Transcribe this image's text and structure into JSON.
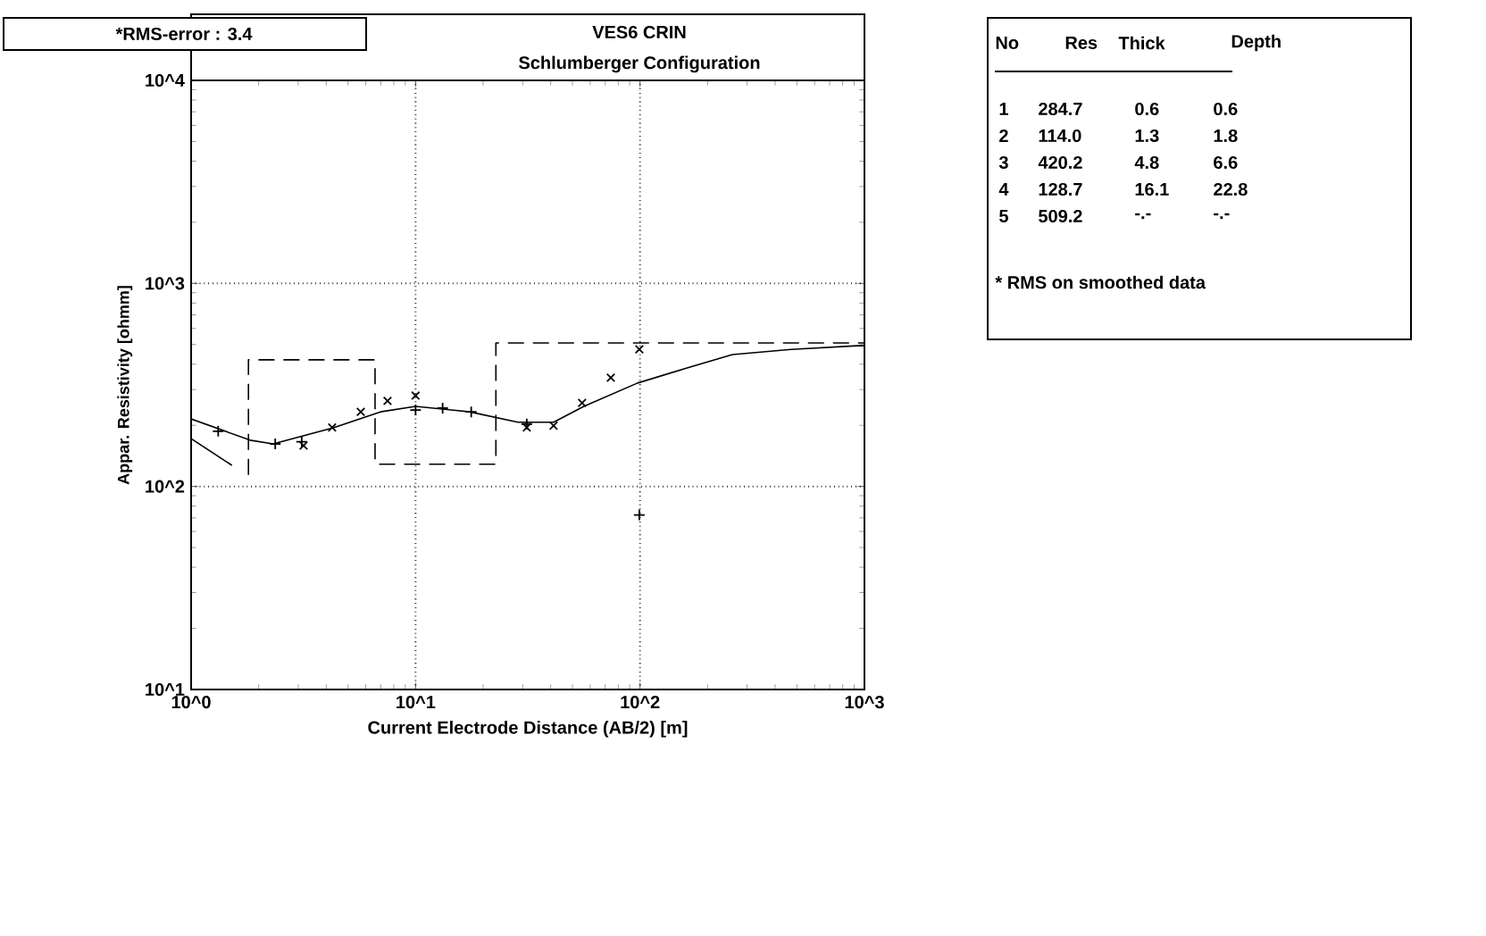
{
  "chart_data": {
    "type": "line",
    "title": "VES6 CRIN",
    "subtitle": "Schlumberger Configuration",
    "xlabel": "Current Electrode Distance (AB/2) [m]",
    "ylabel": "Appar. Resistivity [ohmm]",
    "log": "xy",
    "grid": true,
    "xlim": [
      1,
      1000
    ],
    "ylim": [
      10,
      10000
    ],
    "xticks": [
      {
        "value": 1,
        "label": "10^0"
      },
      {
        "value": 10,
        "label": "10^1"
      },
      {
        "value": 100,
        "label": "10^2"
      },
      {
        "value": 1000,
        "label": "10^3"
      }
    ],
    "yticks": [
      {
        "value": 10,
        "label": "10^1"
      },
      {
        "value": 100,
        "label": "10^2"
      },
      {
        "value": 1000,
        "label": "10^3"
      },
      {
        "value": 10000,
        "label": "10^4"
      }
    ],
    "series": [
      {
        "color": "#000000",
        "line_style": "solid",
        "marker": "none",
        "x": [
          1.0,
          1.83,
          2.32,
          4.33,
          6.97,
          10.0,
          17.4,
          28.6,
          41.2,
          56.2,
          97.5,
          157,
          258,
          471,
          927,
          1000
        ],
        "values": [
          215,
          169,
          162,
          195,
          233,
          248,
          233,
          207,
          207,
          248,
          323,
          379,
          446,
          473,
          493,
          493
        ]
      },
      {
        "color": "#000000",
        "line_style": "dashed",
        "marker": "none",
        "x": [
          1.8,
          1.8,
          6.6,
          6.6,
          22.8,
          22.8,
          1000
        ],
        "values": [
          114.0,
          420.2,
          420.2,
          128.7,
          128.7,
          509.2,
          509.2
        ]
      },
      {
        "color": "#000000",
        "line_style": "solid",
        "marker": "none",
        "x": [
          1.0,
          1.52
        ],
        "values": [
          172,
          127
        ]
      },
      {
        "type": "scatter",
        "color": "#000000",
        "marker": "cross",
        "x": [
          3.17,
          4.25,
          5.7,
          7.5,
          10.0,
          31.3,
          41.2,
          55.2,
          74.1,
          99.3
        ],
        "values": [
          159,
          195,
          233,
          264,
          280,
          195,
          199,
          258,
          343,
          473
        ]
      },
      {
        "type": "scatter",
        "color": "#000000",
        "marker": "plus",
        "x": [
          1.32,
          2.37,
          3.11,
          10.0,
          13.2,
          17.7,
          31.3,
          99.3
        ],
        "values": [
          187,
          162,
          166,
          238,
          243,
          233,
          203,
          72.4
        ]
      }
    ],
    "annotations": [
      "*RMS-error :  3.4",
      "No",
      "Res",
      "Thick",
      "Depth",
      "1",
      "284.7",
      "0.6",
      "0.6",
      "2",
      "114.0",
      "1.3",
      "1.8",
      "3",
      "420.2",
      "4.8",
      "6.6",
      "4",
      "128.7",
      "16.1",
      "22.8",
      "5",
      "509.2",
      "-.-",
      "-.-",
      "* RMS on smoothed data"
    ]
  }
}
